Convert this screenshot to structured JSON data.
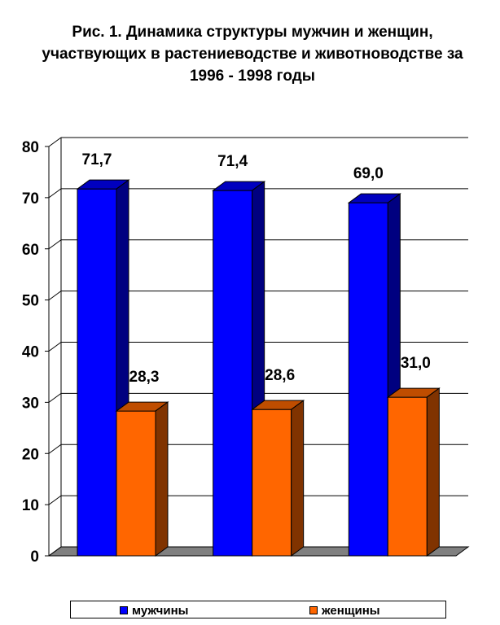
{
  "chart_data": {
    "type": "bar",
    "title": "Рис. 1. Динамика структуры мужчин и женщин, участвующих в растениеводстве и животноводстве за 1996 - 1998 годы",
    "categories": [
      "",
      "",
      ""
    ],
    "series": [
      {
        "name": "мужчины",
        "values": [
          71.7,
          71.4,
          69.0
        ],
        "labels": [
          "71,7",
          "71,4",
          "69,0"
        ],
        "color": "#0000ff"
      },
      {
        "name": "женщины",
        "values": [
          28.3,
          28.6,
          31.0
        ],
        "labels": [
          "28,3",
          "28,6",
          "31,0"
        ],
        "color": "#ff6600"
      }
    ],
    "ylim": [
      0,
      80
    ],
    "yticks": [
      "0",
      "10",
      "20",
      "30",
      "40",
      "50",
      "60",
      "70",
      "80"
    ],
    "grid": true,
    "legend": "bottom",
    "three_d": true
  }
}
